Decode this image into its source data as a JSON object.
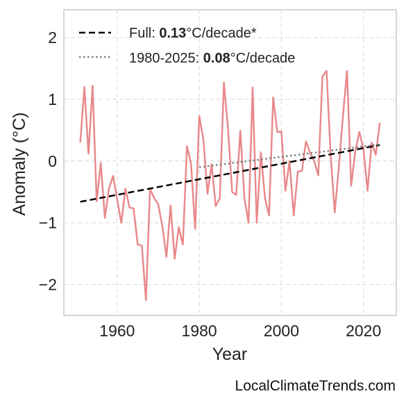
{
  "chart_data": {
    "type": "line",
    "xlabel": "Year",
    "ylabel": "Anomaly (°C)",
    "xlim": [
      1947,
      2028
    ],
    "ylim": [
      -2.5,
      2.45
    ],
    "xticks": [
      1960,
      1980,
      2000,
      2020
    ],
    "yticks": [
      -2,
      -1,
      0,
      1,
      2
    ],
    "ytick_labels": [
      "−2",
      "−1",
      "0",
      "1",
      "2"
    ],
    "grid": true,
    "legend_position": "top-left",
    "series": [
      {
        "role": "anomaly",
        "color": "#e8898b",
        "style": "solid",
        "x": [
          1951,
          1952,
          1953,
          1954,
          1955,
          1956,
          1957,
          1958,
          1959,
          1960,
          1961,
          1962,
          1963,
          1964,
          1965,
          1966,
          1967,
          1968,
          1969,
          1970,
          1971,
          1972,
          1973,
          1974,
          1975,
          1976,
          1977,
          1978,
          1979,
          1980,
          1981,
          1982,
          1983,
          1984,
          1985,
          1986,
          1987,
          1988,
          1989,
          1990,
          1991,
          1992,
          1993,
          1994,
          1995,
          1996,
          1997,
          1998,
          1999,
          2000,
          2001,
          2002,
          2003,
          2004,
          2005,
          2006,
          2007,
          2008,
          2009,
          2010,
          2011,
          2012,
          2013,
          2014,
          2015,
          2016,
          2017,
          2018,
          2019,
          2020,
          2021,
          2022,
          2023,
          2024
        ],
        "y": [
          0.3,
          1.2,
          0.12,
          1.22,
          -0.65,
          -0.03,
          -0.92,
          -0.45,
          -0.24,
          -0.63,
          -1.0,
          -0.45,
          -0.75,
          -0.77,
          -1.35,
          -1.37,
          -2.25,
          -0.45,
          -0.6,
          -0.7,
          -1.05,
          -1.55,
          -0.72,
          -1.58,
          -1.07,
          -1.35,
          0.24,
          -0.05,
          -1.1,
          0.73,
          0.35,
          -0.53,
          -0.05,
          -0.73,
          -0.6,
          1.27,
          0.53,
          -0.5,
          -0.55,
          0.49,
          -0.6,
          -1.0,
          1.19,
          -1.0,
          0.14,
          -0.6,
          -0.88,
          1.03,
          0.47,
          0.48,
          -0.48,
          0.0,
          -0.88,
          -0.17,
          -0.16,
          0.32,
          0.13,
          0.0,
          -0.23,
          1.37,
          1.46,
          0.1,
          -0.83,
          -0.1,
          0.72,
          1.46,
          -0.4,
          0.15,
          0.47,
          0.2,
          -0.48,
          0.3,
          0.1,
          0.62
        ]
      },
      {
        "role": "trend-full",
        "name": "Full: 0.13°C/decade*",
        "name_plain": "Full: ",
        "name_bold": "0.13",
        "name_suffix": "°C/decade*",
        "color": "#000000",
        "style": "dashed",
        "x": [
          1951,
          2024
        ],
        "y": [
          -0.66,
          0.26
        ]
      },
      {
        "role": "trend-recent",
        "name": "1980-2025: 0.08°C/decade",
        "name_plain": "1980-2025: ",
        "name_bold": "0.08",
        "name_suffix": "°C/decade",
        "color": "#808080",
        "style": "dotted",
        "x": [
          1980,
          2024
        ],
        "y": [
          -0.1,
          0.27
        ]
      }
    ]
  },
  "credit": "LocalClimateTrends.com"
}
